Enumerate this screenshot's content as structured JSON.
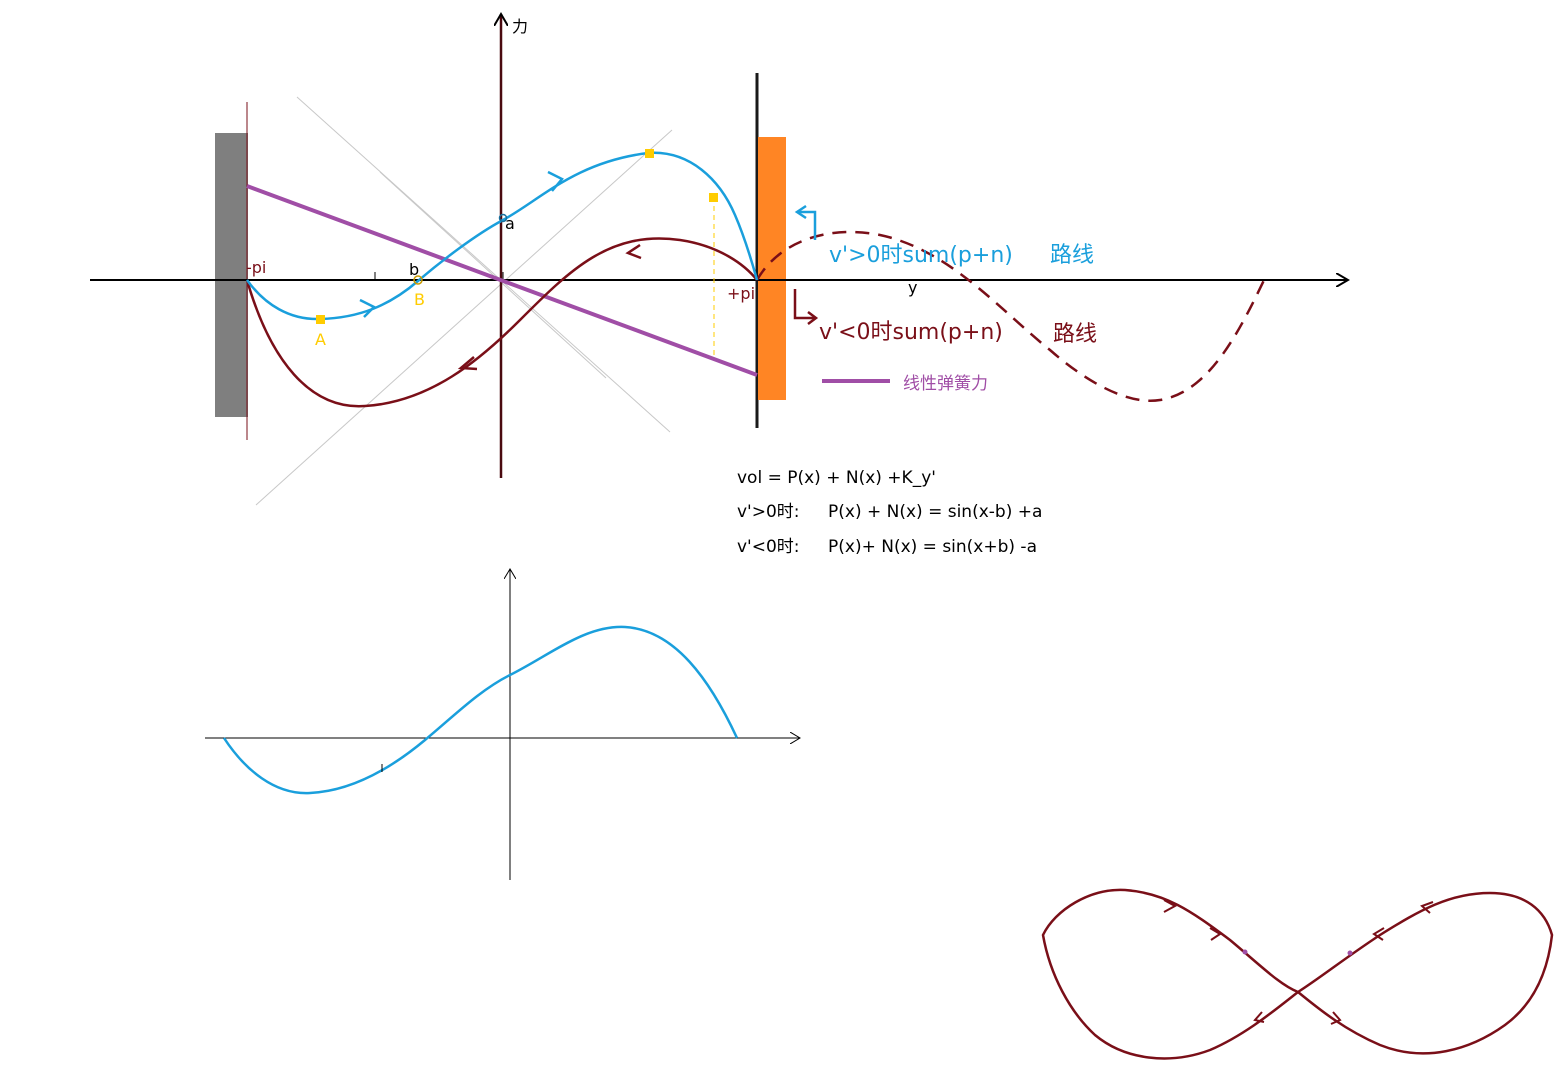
{
  "colors": {
    "blue": "#1a9fdc",
    "darkred": "#7a0f18",
    "purple": "#a04ea6",
    "gray": "#7f7f7f",
    "orange": "#ff8524",
    "yellow": "#ffcc00",
    "axis": "#000000",
    "axis_dark": "#4a0a10",
    "guide": "#c8c8c8"
  },
  "main_diagram": {
    "y_axis_label": "力",
    "x_axis_label": "y",
    "left_wall_label": "-pi",
    "right_wall_label": "+pi",
    "point_a_label": "a",
    "point_b_label": "b",
    "point_A_label": "A",
    "point_B_label": "B"
  },
  "legend": {
    "positive_text": "v'>0时sum(p+n)",
    "positive_route": "路线",
    "negative_text": "v'<0时sum(p+n)",
    "negative_route": "路线",
    "spring_label": "线性弹簧力"
  },
  "formulas": {
    "line1": "vol  =  P(x)  +  N(x) +K_y'",
    "line2_cond": "v'>0时:",
    "line2_eq": "P(x) +  N(x)  = sin(x-b) +a",
    "line3_cond": "v'<0时:",
    "line3_eq": "P(x)+  N(x) = sin(x+b) -a"
  },
  "icons": {
    "left_wall": "wall-rect",
    "right_wall": "wall-rect",
    "arrowheads": "arrow-chevron"
  }
}
